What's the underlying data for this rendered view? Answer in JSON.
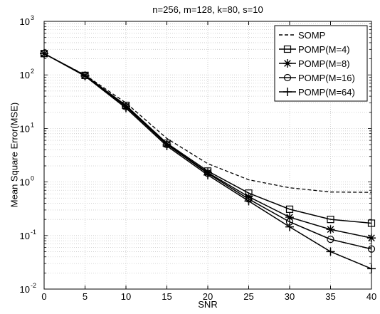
{
  "chart_data": {
    "type": "line",
    "title": "n=256, m=128, k=80, s=10",
    "xlabel": "SNR",
    "ylabel": "Mean Square Error(MSE)",
    "x": [
      0,
      5,
      10,
      15,
      20,
      25,
      30,
      35,
      40
    ],
    "xlim": [
      0,
      40
    ],
    "xticks": [
      0,
      5,
      10,
      15,
      20,
      25,
      30,
      35,
      40
    ],
    "yscale": "log",
    "ylim": [
      0.01,
      1000
    ],
    "yticks": [
      {
        "value": 0.01,
        "base": "10",
        "exp": "-2"
      },
      {
        "value": 0.1,
        "base": "10",
        "exp": "-1"
      },
      {
        "value": 1,
        "base": "10",
        "exp": "0"
      },
      {
        "value": 10,
        "base": "10",
        "exp": "1"
      },
      {
        "value": 100,
        "base": "10",
        "exp": "2"
      },
      {
        "value": 1000,
        "base": "10",
        "exp": "3"
      }
    ],
    "grid": true,
    "legend_position": "top-right",
    "series": [
      {
        "name": "SOMP",
        "marker": "none",
        "dash": "dashed",
        "values": [
          250,
          100,
          30,
          6.5,
          2.2,
          1.1,
          0.78,
          0.65,
          0.64
        ]
      },
      {
        "name": "POMP(M=4)",
        "marker": "square",
        "dash": "solid",
        "values": [
          250,
          98,
          27,
          5.3,
          1.6,
          0.62,
          0.31,
          0.2,
          0.17
        ]
      },
      {
        "name": "POMP(M=8)",
        "marker": "asterisk",
        "dash": "solid",
        "values": [
          250,
          97,
          26,
          5.1,
          1.5,
          0.53,
          0.22,
          0.13,
          0.09
        ]
      },
      {
        "name": "POMP(M=16)",
        "marker": "circle",
        "dash": "solid",
        "values": [
          250,
          96,
          25.5,
          5.0,
          1.45,
          0.48,
          0.18,
          0.085,
          0.056
        ]
      },
      {
        "name": "POMP(M=64)",
        "marker": "plus",
        "dash": "solid",
        "values": [
          250,
          95,
          24,
          4.7,
          1.35,
          0.44,
          0.145,
          0.05,
          0.024
        ]
      }
    ]
  }
}
